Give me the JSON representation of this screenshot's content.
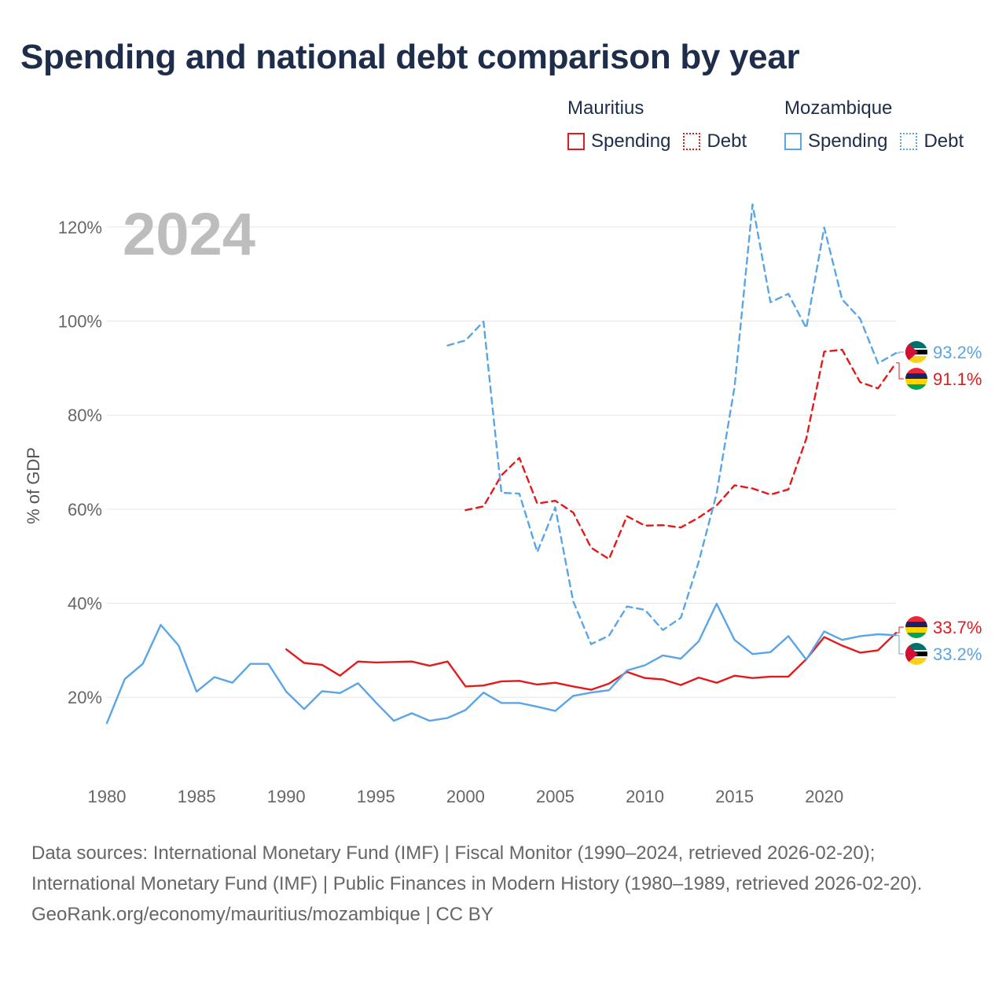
{
  "title": "Spending and national debt comparison by year",
  "legend": {
    "groups": [
      {
        "country": "Mauritius",
        "color": "#e31a1c",
        "items": [
          {
            "label": "Spending",
            "style": "solid"
          },
          {
            "label": "Debt",
            "style": "dotted"
          }
        ]
      },
      {
        "country": "Mozambique",
        "color": "#5aa5e6",
        "items": [
          {
            "label": "Spending",
            "style": "solid"
          },
          {
            "label": "Debt",
            "style": "dotted"
          }
        ]
      }
    ]
  },
  "chart_data": {
    "type": "line",
    "current_year_label": "2024",
    "ylabel": "% of GDP",
    "xlim": [
      1980,
      2024
    ],
    "ylim": [
      8,
      128
    ],
    "x_ticks": [
      "1980",
      "1985",
      "1990",
      "1995",
      "2000",
      "2005",
      "2010",
      "2015",
      "2020"
    ],
    "y_ticks": [
      {
        "value": 20,
        "label": "20%"
      },
      {
        "value": 40,
        "label": "40%"
      },
      {
        "value": 60,
        "label": "60%"
      },
      {
        "value": 80,
        "label": "80%"
      },
      {
        "value": 100,
        "label": "100%"
      },
      {
        "value": 120,
        "label": "120%"
      }
    ],
    "series": [
      {
        "name": "Mauritius Spending",
        "country": "Mauritius",
        "kind": "spending",
        "color": "#e31a1c",
        "dashed": false,
        "start_year": 1990,
        "values": [
          30.2,
          27.3,
          26.9,
          24.6,
          27.6,
          27.4,
          27.5,
          27.6,
          26.7,
          27.6,
          22.3,
          22.5,
          23.4,
          23.5,
          22.7,
          23.1,
          22.3,
          21.6,
          22.9,
          25.4,
          24.1,
          23.8,
          22.6,
          24.2,
          23.1,
          24.6,
          24.1,
          24.4,
          24.4,
          28.1,
          32.8,
          31.0,
          29.5,
          30.0,
          33.7
        ],
        "end_label": "33.7%"
      },
      {
        "name": "Mozambique Spending",
        "country": "Mozambique",
        "kind": "spending",
        "color": "#5aa5e6",
        "dashed": false,
        "start_year": 1980,
        "values": [
          14.5,
          23.9,
          27.1,
          35.4,
          31.0,
          21.2,
          24.3,
          23.1,
          27.1,
          27.1,
          21.2,
          17.5,
          21.3,
          20.9,
          23.0,
          18.9,
          15.0,
          16.6,
          15.0,
          15.6,
          17.3,
          21.0,
          18.8,
          18.8,
          18.0,
          17.1,
          20.3,
          21.0,
          21.5,
          25.7,
          26.8,
          28.9,
          28.2,
          31.9,
          39.9,
          32.2,
          29.2,
          29.6,
          33.0,
          28.0,
          34.0,
          32.2,
          33.0,
          33.4,
          33.2
        ],
        "end_label": "33.2%"
      },
      {
        "name": "Mauritius Debt",
        "country": "Mauritius",
        "kind": "debt",
        "color": "#e31a1c",
        "dashed": true,
        "start_year": 2000,
        "values": [
          59.8,
          60.6,
          67.2,
          70.9,
          61.2,
          61.8,
          59.3,
          51.8,
          49.4,
          58.5,
          56.5,
          56.6,
          56.1,
          58.2,
          60.8,
          65.1,
          64.4,
          63.1,
          64.2,
          75.0,
          93.5,
          93.9,
          87.0,
          85.7,
          91.1
        ],
        "end_label": "91.1%"
      },
      {
        "name": "Mozambique Debt",
        "country": "Mozambique",
        "kind": "debt",
        "color": "#5aa5e6",
        "dashed": true,
        "start_year": 1999,
        "values": [
          94.8,
          95.9,
          99.9,
          63.5,
          63.3,
          50.9,
          60.4,
          40.4,
          31.3,
          33.1,
          39.3,
          38.6,
          34.3,
          36.9,
          48.8,
          63.3,
          86.0,
          124.8,
          104.0,
          105.8,
          98.5,
          119.9,
          104.6,
          100.5,
          91.0,
          93.2
        ],
        "end_label": "93.2%"
      }
    ]
  },
  "sources": {
    "line1": "Data sources: International Monetary Fund (IMF) | Fiscal Monitor (1990–2024, retrieved 2026-02-20); International Monetary Fund (IMF) | Public Finances in Modern History (1980–1989, retrieved 2026-02-20).",
    "line2": "GeoRank.org/economy/mauritius/mozambique | CC BY"
  }
}
